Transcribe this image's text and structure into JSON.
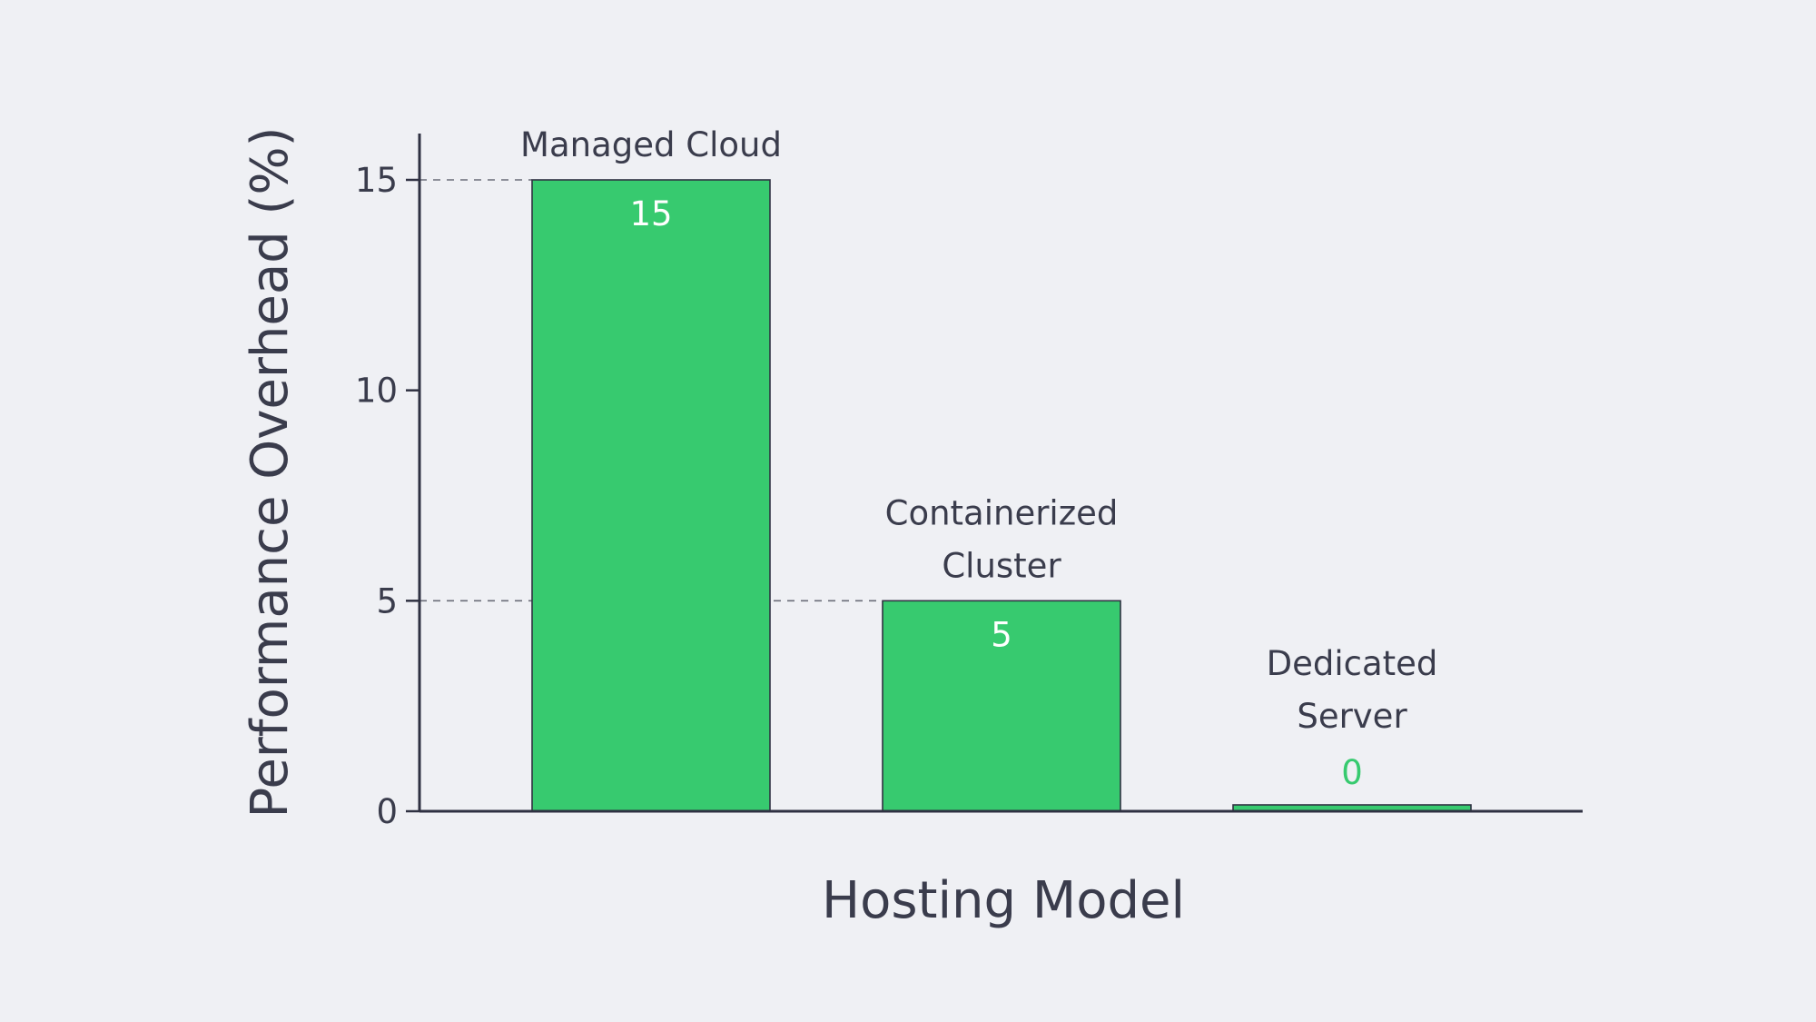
{
  "chart_data": {
    "type": "bar",
    "categories": [
      "Managed Cloud",
      "Containerized Cluster",
      "Dedicated Server"
    ],
    "category_lines": [
      [
        "Managed Cloud"
      ],
      [
        "Containerized",
        "Cluster"
      ],
      [
        "Dedicated",
        "Server"
      ]
    ],
    "values": [
      15,
      5,
      0
    ],
    "value_labels": [
      "15",
      "5",
      "0"
    ],
    "title": "",
    "xlabel": "Hosting Model",
    "ylabel": "Performance Overhead (%)",
    "ylim": [
      0,
      16
    ],
    "yticks": [
      0,
      5,
      10,
      15
    ],
    "ytick_labels": [
      "0",
      "5",
      "10",
      "15"
    ],
    "grid": false,
    "legend": "none",
    "colors": {
      "bar": "#37ca6f",
      "axis": "#2f3142",
      "text": "#3a3c4c",
      "background": "#eff0f4"
    }
  }
}
